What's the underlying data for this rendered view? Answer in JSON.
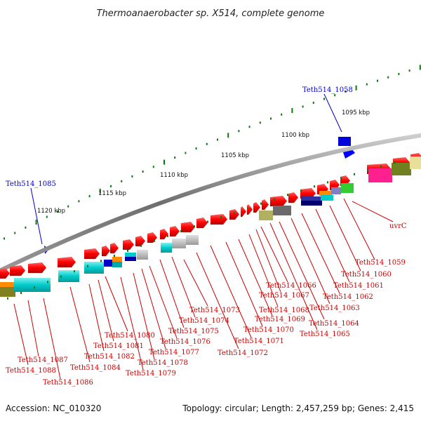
{
  "title": "Thermoanaerobacter sp. X514, complete genome",
  "footer": {
    "accession": "Accession: NC_010320",
    "topology": "Topology: circular; Length: 2,457,259 bp; Genes: 2,415"
  },
  "kbp_ticks": [
    "1120 kbp",
    "1115 kbp",
    "1110 kbp",
    "1105 kbp",
    "1100 kbp",
    "1095 kbp"
  ],
  "blue_genes": [
    "Teth514_1085",
    "Teth514_1058"
  ],
  "red_genes": [
    "Teth514_1088",
    "Teth514_1087",
    "Teth514_1086",
    "Teth514_1084",
    "Teth514_1082",
    "Teth514_1081",
    "Teth514_1080",
    "Teth514_1079",
    "Teth514_1078",
    "Teth514_1077",
    "Teth514_1076",
    "Teth514_1075",
    "Teth514_1074",
    "Teth514_1073",
    "Teth514_1072",
    "Teth514_1071",
    "Teth514_1070",
    "Teth514_1069",
    "Teth514_1068",
    "Teth514_1067",
    "Teth514_1066",
    "Teth514_1065",
    "Teth514_1064",
    "Teth514_1063",
    "Teth514_1062",
    "Teth514_1061",
    "Teth514_1060",
    "Teth514_1059",
    "uvrC"
  ],
  "colors": {
    "gene": "#ff0000",
    "label_red": "#cc0000",
    "label_blue": "#0000cc",
    "tick": "#0a7a0a",
    "backbone": "#777777"
  }
}
